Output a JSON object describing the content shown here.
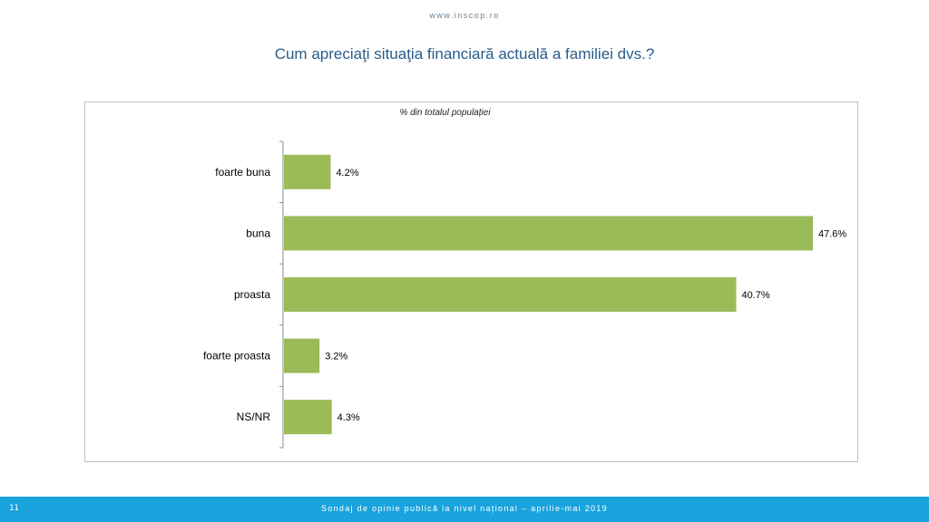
{
  "header": {
    "site_url": "www.inscop.ro",
    "title": "Cum apreciaţi situaţia financiară actuală a familiei dvs.?"
  },
  "chart_data": {
    "type": "bar",
    "orientation": "horizontal",
    "title": "Cum apreciaţi situaţia financiară actuală a familiei dvs.?",
    "subtitle": "% din totalul populației",
    "categories": [
      "foarte buna",
      "buna",
      "proasta",
      "foarte proasta",
      "NS/NR"
    ],
    "values": [
      4.2,
      47.6,
      40.7,
      3.2,
      4.3
    ],
    "value_labels": [
      "4.2%",
      "47.6%",
      "40.7%",
      "3.2%",
      "4.3%"
    ],
    "unit": "%",
    "xlim": [
      0,
      50
    ],
    "bar_color": "#9bbb59",
    "grid": false,
    "legend": "none"
  },
  "footer": {
    "page_number": "11",
    "text": "Sondaj de opinie publică la nivel național – aprilie-mai 2019",
    "background_color": "#1aa3dd"
  }
}
